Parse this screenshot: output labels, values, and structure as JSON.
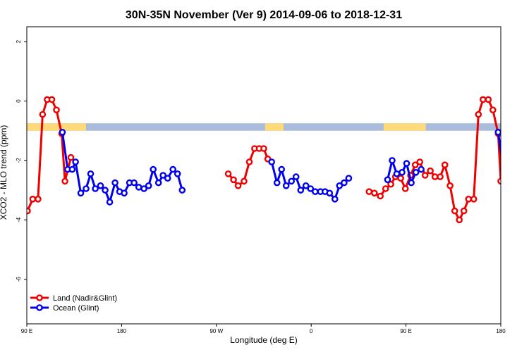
{
  "chart_data": {
    "type": "line",
    "title": "30N-35N November (Ver 9)   2014-09-06 to 2018-12-31",
    "xlabel": "Longitude (deg E)",
    "ylabel": "XCO2 - MLO trend (ppm)",
    "xlim": [
      90,
      450
    ],
    "ylim": [
      -7.5,
      2.5
    ],
    "x_ticks": [
      {
        "value": 90,
        "label": "90 E"
      },
      {
        "value": 180,
        "label": "180"
      },
      {
        "value": 270,
        "label": "90 W"
      },
      {
        "value": 360,
        "label": "0"
      },
      {
        "value": 450,
        "label": "90 E"
      },
      {
        "value": 540,
        "label": "180"
      }
    ],
    "y_ticks": [
      {
        "value": 2,
        "label": "2"
      },
      {
        "value": 0,
        "label": "0"
      },
      {
        "value": -2,
        "label": "-2"
      },
      {
        "value": -4,
        "label": "-4"
      },
      {
        "value": -6,
        "label": "-6"
      }
    ],
    "grid": false,
    "legend_position": "bottom-left",
    "surface_strip": {
      "y_range": [
        -1.0,
        -0.75
      ],
      "land_color": "#FFDA7A",
      "ocean_color": "#A9BCDB",
      "land_ranges": [
        [
          90,
          135
        ],
        [
          271,
          285
        ],
        [
          361,
          393
        ],
        [
          450,
          495
        ]
      ]
    },
    "series": [
      {
        "name": "Land (Nadir&Glint)",
        "color": "#EE0000",
        "segments": [
          [
            [
              90.5,
              -3.7
            ],
            [
              94.5,
              -3.3
            ],
            [
              98.5,
              -3.3
            ],
            [
              102,
              -0.45
            ],
            [
              105.5,
              0.05
            ],
            [
              109,
              0.05
            ],
            [
              112.5,
              -0.3
            ],
            [
              116.5,
              -1.1
            ],
            [
              119,
              -2.7
            ],
            [
              123.5,
              -1.9
            ]
          ],
          [
            [
              243,
              -2.45
            ],
            [
              247,
              -2.65
            ],
            [
              250.5,
              -2.85
            ],
            [
              255,
              -2.7
            ],
            [
              259,
              -2.05
            ],
            [
              263,
              -1.6
            ],
            [
              266.5,
              -1.6
            ],
            [
              270,
              -1.6
            ],
            [
              273,
              -1.95
            ]
          ],
          [
            [
              350,
              -3.05
            ],
            [
              354,
              -3.1
            ],
            [
              358.5,
              -3.2
            ],
            [
              362.5,
              -2.95
            ],
            [
              366.5,
              -2.8
            ],
            [
              370,
              -2.55
            ],
            [
              374,
              -2.6
            ],
            [
              377.5,
              -2.95
            ],
            [
              381.5,
              -2.5
            ],
            [
              385,
              -2.15
            ],
            [
              388.5,
              -2.05
            ],
            [
              392.5,
              -2.5
            ],
            [
              396.5,
              -2.35
            ],
            [
              400,
              -2.55
            ],
            [
              404,
              -2.55
            ],
            [
              407.5,
              -2.15
            ],
            [
              411.5,
              -2.85
            ],
            [
              415,
              -3.7
            ],
            [
              418.5,
              -4.0
            ],
            [
              422,
              -3.7
            ],
            [
              425.5,
              -3.3
            ],
            [
              429.5,
              -3.3
            ],
            [
              433,
              -0.45
            ],
            [
              436.5,
              0.05
            ],
            [
              440.5,
              0.05
            ],
            [
              444,
              -0.3
            ],
            [
              448,
              -1.1
            ],
            [
              450,
              -2.7
            ],
            [
              454,
              -1.9
            ]
          ]
        ]
      },
      {
        "name": "Ocean (Glint)",
        "color": "#0000EE",
        "segments": [
          [
            [
              117,
              -1.05
            ],
            [
              121,
              -2.3
            ],
            [
              124.5,
              -2.3
            ],
            [
              127,
              -2.05
            ],
            [
              131,
              -3.1
            ],
            [
              135,
              -2.95
            ],
            [
              138.5,
              -2.45
            ],
            [
              142,
              -2.95
            ],
            [
              146,
              -2.85
            ],
            [
              149.5,
              -3.0
            ],
            [
              153,
              -3.4
            ],
            [
              157,
              -2.75
            ],
            [
              160.5,
              -3.05
            ],
            [
              164,
              -3.1
            ],
            [
              168,
              -2.75
            ],
            [
              171.5,
              -2.75
            ],
            [
              175,
              -2.9
            ],
            [
              179,
              -2.95
            ],
            [
              182.5,
              -2.85
            ],
            [
              186,
              -2.3
            ],
            [
              190,
              -2.75
            ],
            [
              193.5,
              -2.5
            ],
            [
              197,
              -2.6
            ],
            [
              201,
              -2.3
            ],
            [
              204.5,
              -2.45
            ],
            [
              208,
              -3.0
            ]
          ],
          [
            [
              276,
              -2.05
            ],
            [
              280,
              -2.75
            ],
            [
              283.5,
              -2.3
            ],
            [
              287,
              -2.85
            ],
            [
              291,
              -2.7
            ],
            [
              294.5,
              -2.55
            ],
            [
              298,
              -3.0
            ],
            [
              302,
              -2.85
            ],
            [
              305.5,
              -2.95
            ],
            [
              309,
              -3.05
            ],
            [
              313,
              -3.05
            ],
            [
              316.5,
              -3.05
            ],
            [
              320,
              -3.1
            ],
            [
              324,
              -3.3
            ],
            [
              327.5,
              -2.85
            ],
            [
              331,
              -2.75
            ],
            [
              334.5,
              -2.6
            ]
          ],
          [
            [
              364,
              -2.65
            ],
            [
              367.5,
              -2.0
            ],
            [
              371,
              -2.45
            ],
            [
              375,
              -2.4
            ],
            [
              378.5,
              -2.1
            ],
            [
              382,
              -2.75
            ],
            [
              385.5,
              -2.4
            ],
            [
              389.5,
              -2.3
            ]
          ],
          [
            [
              448,
              -1.05
            ],
            [
              452,
              -2.3
            ],
            [
              455,
              -2.3
            ],
            [
              458,
              -2.05
            ],
            [
              462,
              -3.1
            ],
            [
              466,
              -2.95
            ],
            [
              469.5,
              -2.45
            ],
            [
              473,
              -2.95
            ],
            [
              477,
              -2.85
            ],
            [
              480.5,
              -3.0
            ],
            [
              484,
              -3.4
            ],
            [
              488,
              -2.75
            ]
          ]
        ]
      }
    ]
  }
}
